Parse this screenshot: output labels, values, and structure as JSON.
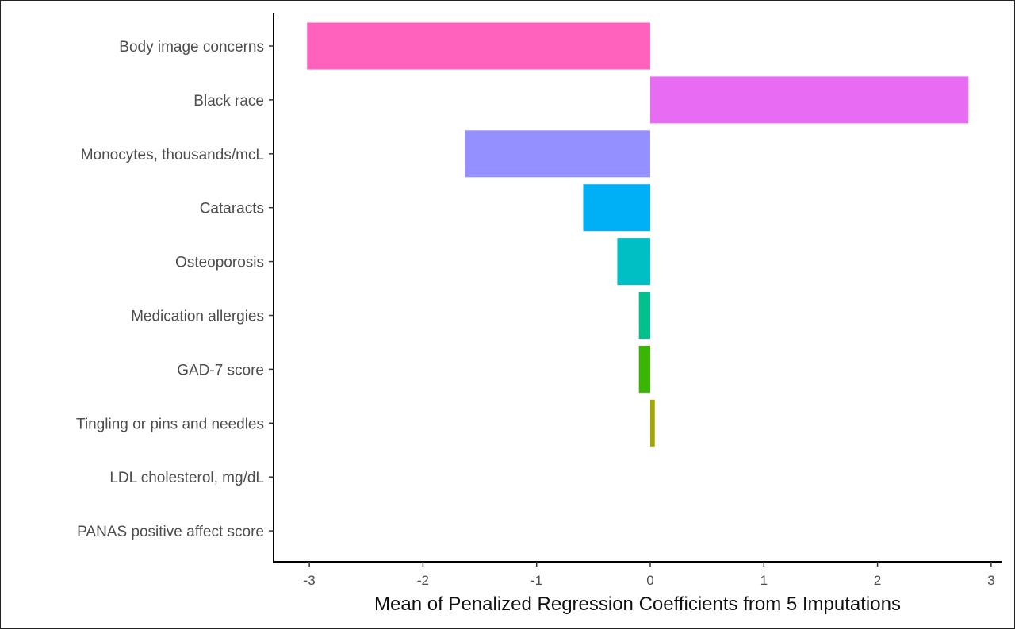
{
  "chart_data": {
    "type": "bar",
    "orientation": "horizontal",
    "title": "",
    "xlabel": "Mean of Penalized Regression Coefficients from 5 Imputations",
    "ylabel": "",
    "xlim": [
      -3.3,
      3.1
    ],
    "xticks": [
      -3,
      -2,
      -1,
      0,
      1,
      2,
      3
    ],
    "xtick_labels": [
      "-3",
      "-2",
      "-1",
      "0",
      "1",
      "2",
      "3"
    ],
    "grid": false,
    "legend": "none",
    "categories": [
      "Body image concerns",
      "Black race",
      "Monocytes, thousands/mcL",
      "Cataracts",
      "Osteoporosis",
      "Medication allergies",
      "GAD-7 score",
      "Tingling or pins and needles",
      "LDL cholesterol, mg/dL",
      "PANAS positive affect score"
    ],
    "values": [
      -3.02,
      2.8,
      -1.63,
      -0.59,
      -0.29,
      -0.1,
      -0.1,
      0.04,
      0.0,
      0.0
    ],
    "colors": [
      "#FF62BC",
      "#E76BF3",
      "#9590FF",
      "#00B0F6",
      "#00BFC4",
      "#00C08B",
      "#39B600",
      "#A3A500",
      "#D89000",
      "#F8766D"
    ]
  }
}
